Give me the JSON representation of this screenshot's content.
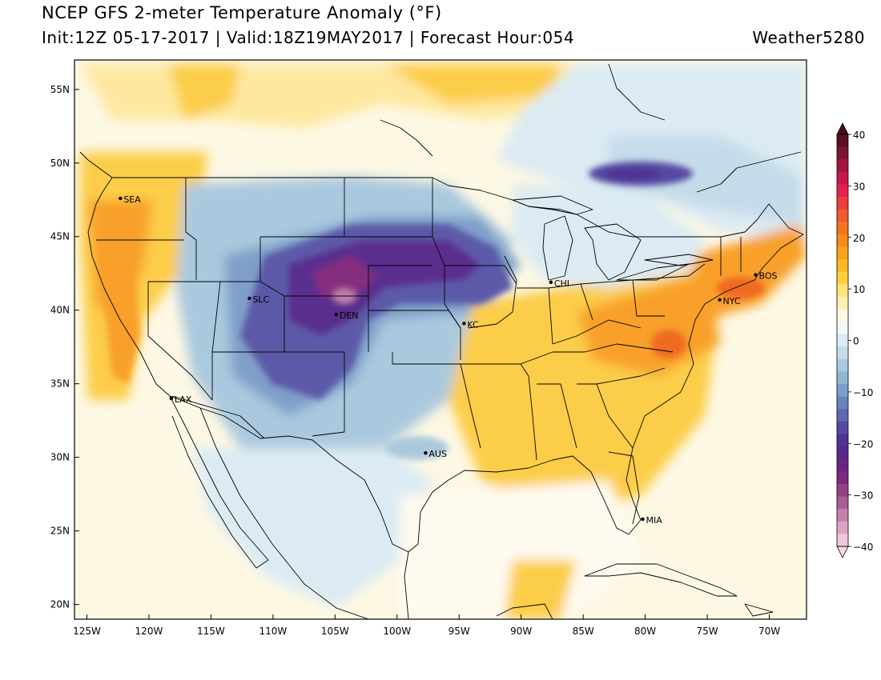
{
  "header": {
    "title": "NCEP GFS 2-meter Temperature Anomaly (°F)",
    "subtitle": "Init:12Z 05-17-2017 | Valid:18Z19MAY2017 | Forecast Hour:054",
    "credit": "Weather5280"
  },
  "map": {
    "lon_range": [
      -126,
      -67
    ],
    "lat_range": [
      19,
      57
    ],
    "lat_ticks": [
      {
        "value": 55,
        "label": "55N"
      },
      {
        "value": 50,
        "label": "50N"
      },
      {
        "value": 45,
        "label": "45N"
      },
      {
        "value": 40,
        "label": "40N"
      },
      {
        "value": 35,
        "label": "35N"
      },
      {
        "value": 30,
        "label": "30N"
      },
      {
        "value": 25,
        "label": "25N"
      },
      {
        "value": 20,
        "label": "20N"
      }
    ],
    "lon_ticks": [
      {
        "value": -125,
        "label": "125W"
      },
      {
        "value": -120,
        "label": "120W"
      },
      {
        "value": -115,
        "label": "115W"
      },
      {
        "value": -110,
        "label": "110W"
      },
      {
        "value": -105,
        "label": "105W"
      },
      {
        "value": -100,
        "label": "100W"
      },
      {
        "value": -95,
        "label": "95W"
      },
      {
        "value": -90,
        "label": "90W"
      },
      {
        "value": -85,
        "label": "85W"
      },
      {
        "value": -80,
        "label": "80W"
      },
      {
        "value": -75,
        "label": "75W"
      },
      {
        "value": -70,
        "label": "70W"
      }
    ],
    "cities": [
      {
        "name": "SEA",
        "lon": -122.3,
        "lat": 47.6
      },
      {
        "name": "SLC",
        "lon": -111.9,
        "lat": 40.8
      },
      {
        "name": "DEN",
        "lon": -104.9,
        "lat": 39.7
      },
      {
        "name": "LAX",
        "lon": -118.2,
        "lat": 34.0
      },
      {
        "name": "KC",
        "lon": -94.6,
        "lat": 39.1
      },
      {
        "name": "CHI",
        "lon": -87.6,
        "lat": 41.9
      },
      {
        "name": "AUS",
        "lon": -97.7,
        "lat": 30.3
      },
      {
        "name": "NYC",
        "lon": -74.0,
        "lat": 40.7
      },
      {
        "name": "BOS",
        "lon": -71.1,
        "lat": 42.4
      },
      {
        "name": "MIA",
        "lon": -80.2,
        "lat": 25.8
      }
    ]
  },
  "colorbar": {
    "tick_labels": [
      {
        "value": 40,
        "label": "40"
      },
      {
        "value": 30,
        "label": "30"
      },
      {
        "value": 20,
        "label": "20"
      },
      {
        "value": 10,
        "label": "10"
      },
      {
        "value": 0,
        "label": "0"
      },
      {
        "value": -10,
        "label": "−10"
      },
      {
        "value": -20,
        "label": "−20"
      },
      {
        "value": -30,
        "label": "−30"
      },
      {
        "value": -40,
        "label": "−40"
      }
    ],
    "colors_top_to_bottom": [
      "#5a0f22",
      "#7d1332",
      "#a11440",
      "#c8174a",
      "#e6214e",
      "#ec3d3f",
      "#ef5a2e",
      "#f27420",
      "#f58b18",
      "#f8a21d",
      "#fbba24",
      "#fdd13e",
      "#fee47a",
      "#fff1b4",
      "#fffae2",
      "#f1f7fb",
      "#dcebf3",
      "#c4dcea",
      "#aacbdf",
      "#92b7d3",
      "#7c9fc8",
      "#6a84bc",
      "#5e68b0",
      "#5448a2",
      "#4f3395",
      "#562a8c",
      "#6a2583",
      "#7c2a7d",
      "#934085",
      "#ab5e96",
      "#c480ab",
      "#dba4c4",
      "#f0c6da"
    ],
    "top_arrow_color": "#4a0b1a",
    "bottom_arrow_color": "#f6d9e6"
  },
  "colors": {
    "ocean": "#fdf8e4",
    "warm_light": "#fee8a0",
    "warm": "#fccd4a",
    "warm_strong": "#f8a02a",
    "hot": "#ef6b22",
    "cool_light": "#dcebf3",
    "cool": "#aac9de",
    "cool_mid": "#7f9fc9",
    "cold": "#5b5aa8",
    "cold_strong": "#5a2d8e",
    "coldest": "#862d7e"
  }
}
